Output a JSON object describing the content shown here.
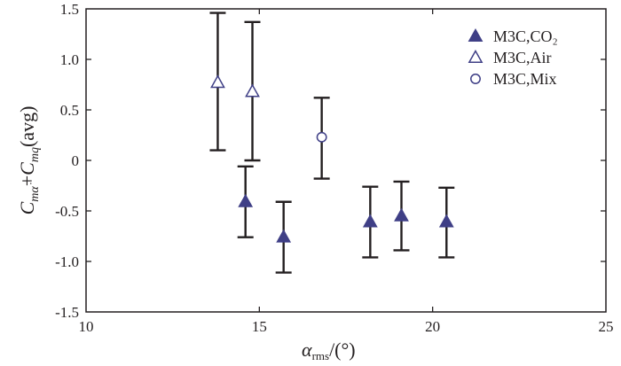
{
  "chart_data": {
    "type": "scatter",
    "xlim": [
      10,
      25
    ],
    "ylim": [
      -1.5,
      1.5
    ],
    "x_ticks": [
      10,
      15,
      20,
      25
    ],
    "y_ticks": [
      -1.5,
      -1.0,
      -0.5,
      0,
      0.5,
      1.0,
      1.5
    ],
    "x_tick_labels": [
      "10",
      "15",
      "20",
      "25"
    ],
    "y_tick_labels": [
      "-1.5",
      "-1.0",
      "-0.5",
      "0",
      "0.5",
      "1.0",
      "1.5"
    ],
    "xlabel": "α_rms/(°)",
    "ylabel": "C_mα̇+C_mq(avg)",
    "grid": false,
    "legend_position": "top-right",
    "series": [
      {
        "name": "M3C,CO₂",
        "marker": "filled-triangle",
        "points": [
          {
            "x": 14.6,
            "y": -0.41,
            "lo": -0.76,
            "hi": -0.06
          },
          {
            "x": 15.7,
            "y": -0.76,
            "lo": -1.11,
            "hi": -0.41
          },
          {
            "x": 18.2,
            "y": -0.61,
            "lo": -0.96,
            "hi": -0.26
          },
          {
            "x": 19.1,
            "y": -0.55,
            "lo": -0.89,
            "hi": -0.21
          },
          {
            "x": 20.4,
            "y": -0.61,
            "lo": -0.96,
            "hi": -0.27
          }
        ]
      },
      {
        "name": "M3C,Air",
        "marker": "open-triangle",
        "points": [
          {
            "x": 13.8,
            "y": 0.77,
            "lo": 0.1,
            "hi": 1.46
          },
          {
            "x": 14.8,
            "y": 0.68,
            "lo": 0.0,
            "hi": 1.37
          }
        ]
      },
      {
        "name": "M3C,Mix",
        "marker": "open-circle",
        "points": [
          {
            "x": 16.8,
            "y": 0.23,
            "lo": -0.18,
            "hi": 0.62
          }
        ]
      }
    ],
    "colors": {
      "marker": "#3f3f86",
      "axis": "#231f20",
      "error_bar": "#231f20"
    }
  }
}
